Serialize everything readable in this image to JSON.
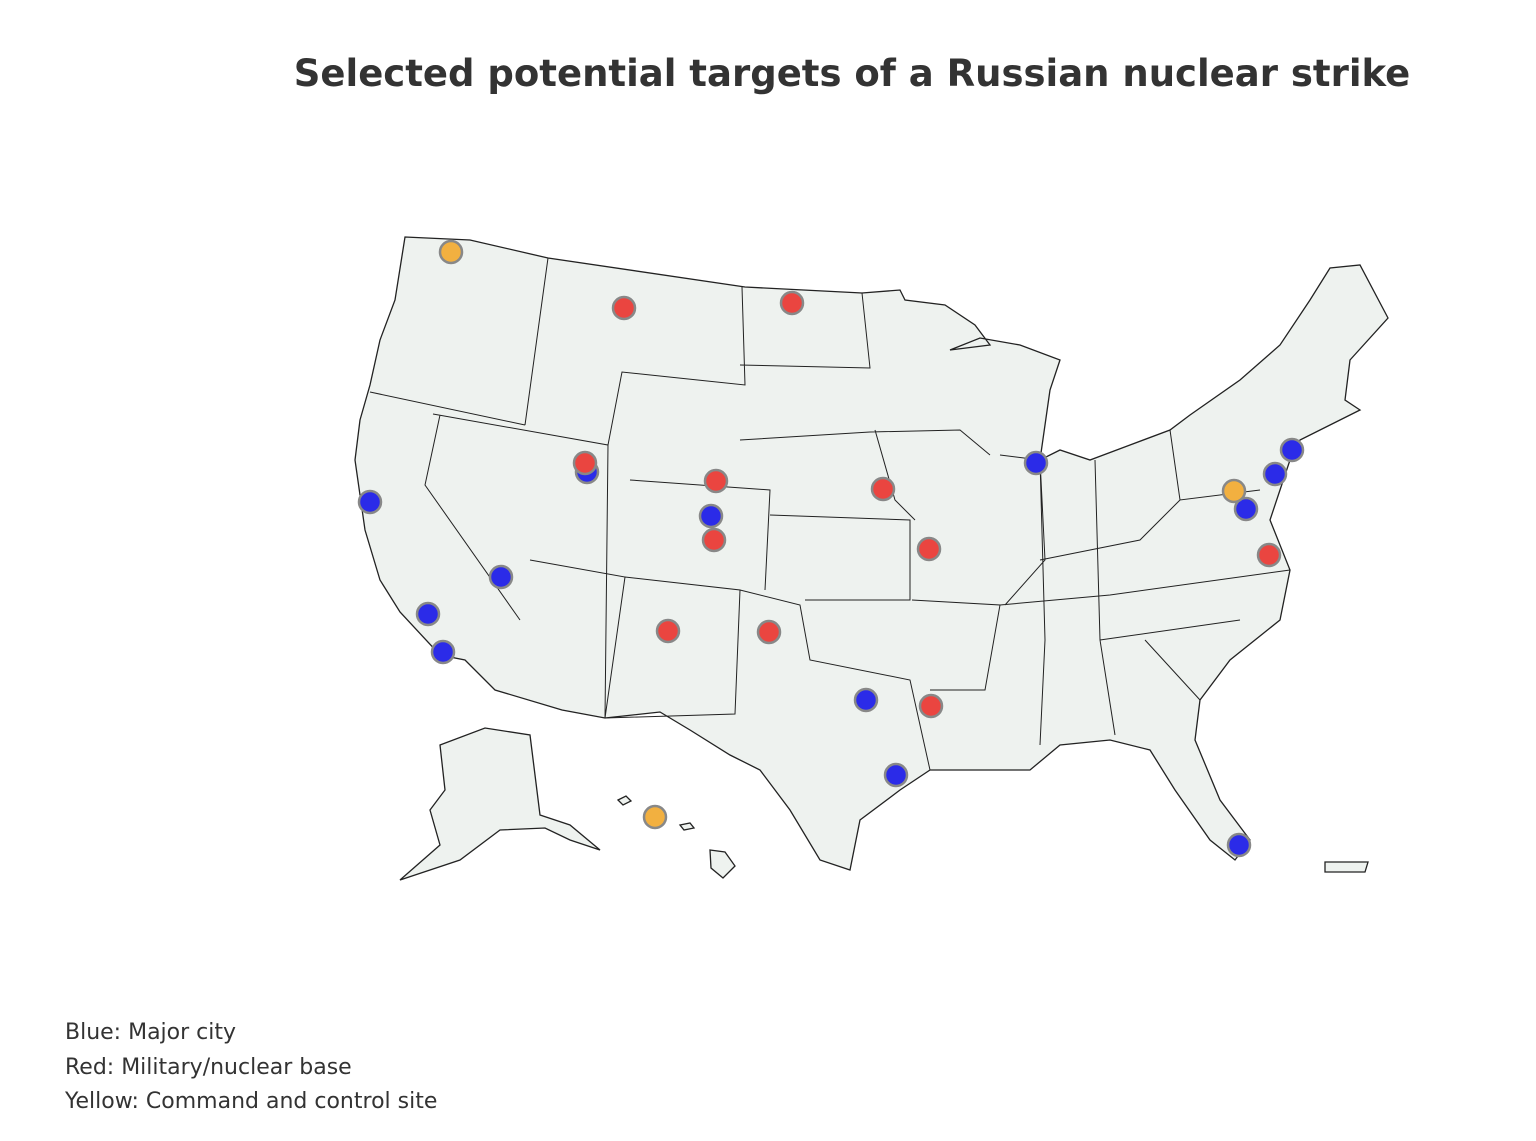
{
  "header": {
    "title": "Selected potential targets of a Russian nuclear strike"
  },
  "legend": {
    "lines": [
      "Blue: Major city",
      "Red: Military/nuclear base",
      "Yellow: Command and control site"
    ]
  }
}
